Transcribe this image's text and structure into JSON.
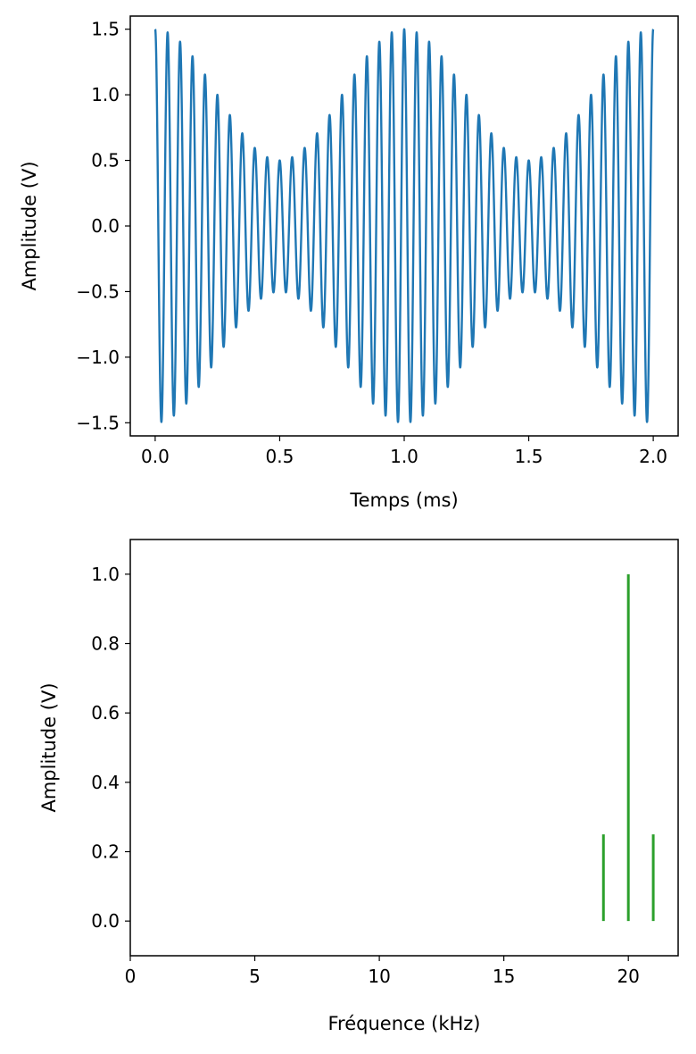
{
  "chart_data": [
    {
      "type": "line",
      "title": "",
      "xlabel": "Temps (ms)",
      "ylabel": "Amplitude (V)",
      "xlim": [
        -0.1,
        2.1
      ],
      "ylim": [
        -1.6,
        1.6
      ],
      "xticks": [
        0.0,
        0.5,
        1.0,
        1.5,
        2.0
      ],
      "xtick_labels": [
        "0.0",
        "0.5",
        "1.0",
        "1.5",
        "2.0"
      ],
      "yticks": [
        1.5,
        1.0,
        0.5,
        0.0,
        -0.5,
        -1.0,
        -1.5
      ],
      "ytick_labels": [
        "1.5",
        "1.0",
        "0.5",
        "0.0",
        "−0.5",
        "−1.0",
        "−1.5"
      ],
      "grid": false,
      "series": [
        {
          "carrier_frequency_khz": 20,
          "carrier_amplitude_v": 1.0,
          "modulation_frequency_khz": 1,
          "sideband_amplitude_v": 0.25,
          "x_range_ms": [
            0,
            2
          ],
          "color": "#1f77b4"
        }
      ]
    },
    {
      "type": "bar",
      "title": "",
      "xlabel": "Fréquence (kHz)",
      "ylabel": "Amplitude (V)",
      "xlim": [
        0,
        22
      ],
      "ylim": [
        -0.1,
        1.1
      ],
      "xticks": [
        0,
        5,
        10,
        15,
        20
      ],
      "xtick_labels": [
        "0",
        "5",
        "10",
        "15",
        "20"
      ],
      "yticks": [
        1.0,
        0.8,
        0.6,
        0.4,
        0.2,
        0.0
      ],
      "ytick_labels": [
        "1.0",
        "0.8",
        "0.6",
        "0.4",
        "0.2",
        "0.0"
      ],
      "grid": false,
      "x": [
        19,
        20,
        21
      ],
      "values": [
        0.25,
        1.0,
        0.25
      ],
      "color": "#2ca02c"
    }
  ]
}
